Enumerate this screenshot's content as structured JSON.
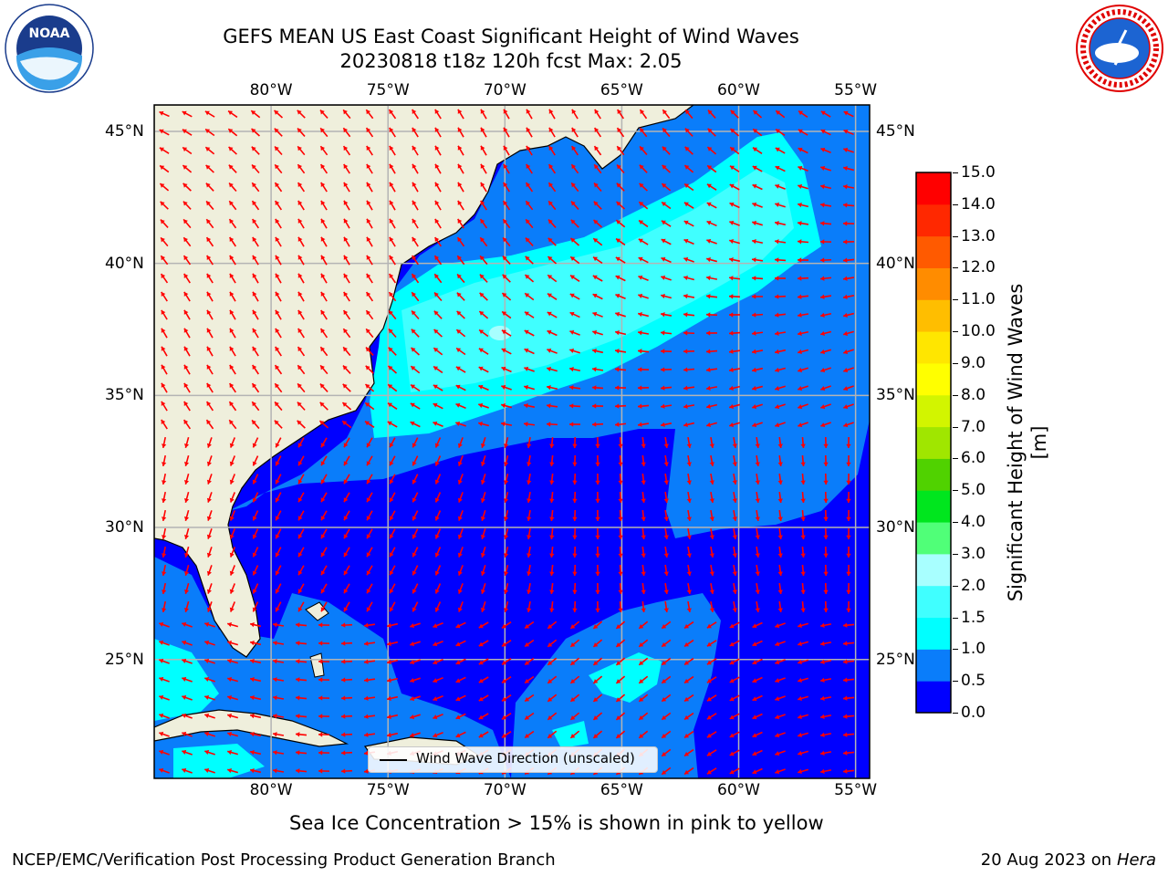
{
  "header": {
    "title_line1": "GEFS MEAN US East Coast Significant Height of Wind Waves",
    "title_line2": "20230818 t18z 120h fcst   Max: 2.05"
  },
  "logos": {
    "left": {
      "text": "NOAA",
      "ring_text": "NATIONAL OCEANIC AND ATMOSPHERIC ADMINISTRATION · U.S. DEPARTMENT OF COMMERCE"
    },
    "right": {
      "ring_text": "NATIONAL WEATHER SERVICE"
    }
  },
  "map": {
    "lon_ticks": [
      "80°W",
      "75°W",
      "70°W",
      "65°W",
      "60°W",
      "55°W"
    ],
    "lat_ticks": [
      "45°N",
      "40°N",
      "35°N",
      "30°N",
      "25°N"
    ],
    "lon_values": [
      -80,
      -75,
      -70,
      -65,
      -60,
      -55
    ],
    "lat_values": [
      45,
      40,
      35,
      30,
      25
    ],
    "extent": {
      "lon": [
        -85,
        -54.4
      ],
      "lat": [
        20.5,
        46
      ]
    },
    "colors": {
      "land": "#efefdc",
      "ocean_low": "#0000ff",
      "ocean_mid": "#0a7dfa",
      "arrows": "#ff0000",
      "grid": "#b4b4b4"
    },
    "legend_label": "Wind Wave Direction (unscaled)"
  },
  "colorbar": {
    "label": "Significant Height of Wind Waves [m]",
    "ticks": [
      "0.0",
      "0.5",
      "1.0",
      "1.5",
      "2.0",
      "3.0",
      "4.0",
      "5.0",
      "6.0",
      "7.0",
      "8.0",
      "9.0",
      "10.0",
      "11.0",
      "12.0",
      "13.0",
      "14.0",
      "15.0"
    ],
    "colors": [
      "#0000ff",
      "#0a7dfa",
      "#00ffff",
      "#40ffff",
      "#a8ffff",
      "#50ff78",
      "#00e61e",
      "#50d200",
      "#a0e600",
      "#d2f500",
      "#ffff00",
      "#ffe600",
      "#ffbe00",
      "#ff8c00",
      "#ff5a00",
      "#ff2800",
      "#ff0000"
    ]
  },
  "footer": {
    "note": "Sea Ice Concentration > 15% is shown in pink to yellow",
    "branch": "NCEP/EMC/Verification Post Processing Product Generation Branch",
    "date": "20 Aug 2023 on",
    "machine": "Hera"
  }
}
